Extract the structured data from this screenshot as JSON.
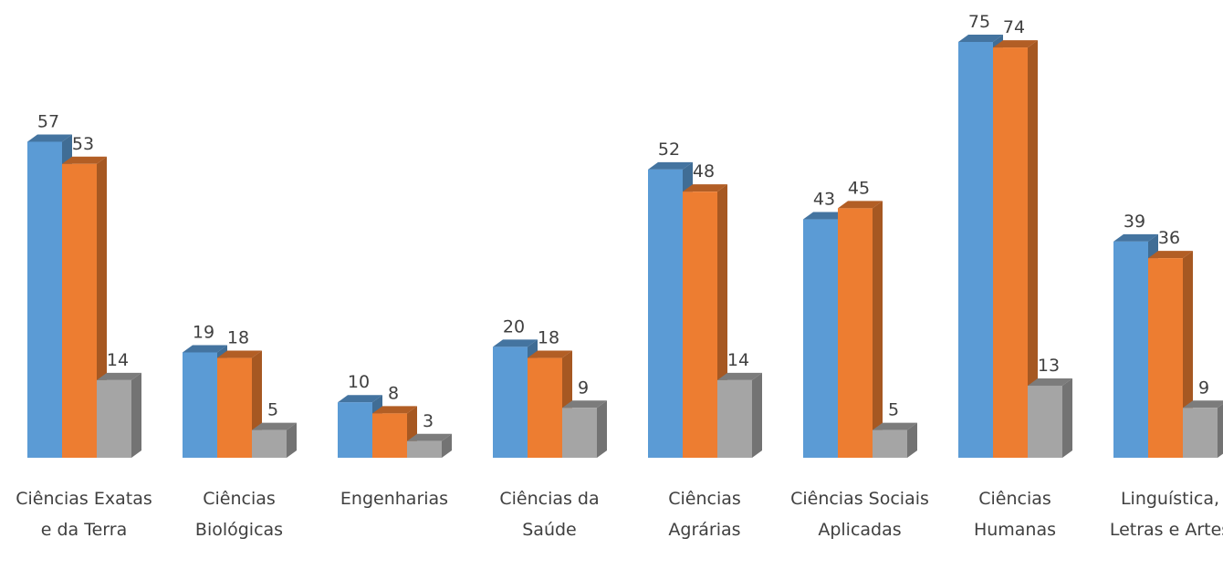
{
  "chart_data": {
    "type": "bar3d",
    "categories": [
      "Ciências Exatas e da Terra",
      "Ciências Biológicas",
      "Engenharias",
      "Ciências da Saúde",
      "Ciências Agrárias",
      "Ciências Sociais Aplicadas",
      "Ciências Humanas",
      "Linguística, Letras e Artes"
    ],
    "series": [
      {
        "color": "#5b9bd5",
        "values": [
          57,
          19,
          10,
          20,
          52,
          43,
          75,
          39
        ]
      },
      {
        "color": "#ed7d31",
        "values": [
          53,
          18,
          8,
          18,
          48,
          45,
          74,
          36
        ]
      },
      {
        "color": "#a5a5a5",
        "values": [
          14,
          5,
          3,
          9,
          14,
          5,
          13,
          9
        ]
      }
    ]
  }
}
